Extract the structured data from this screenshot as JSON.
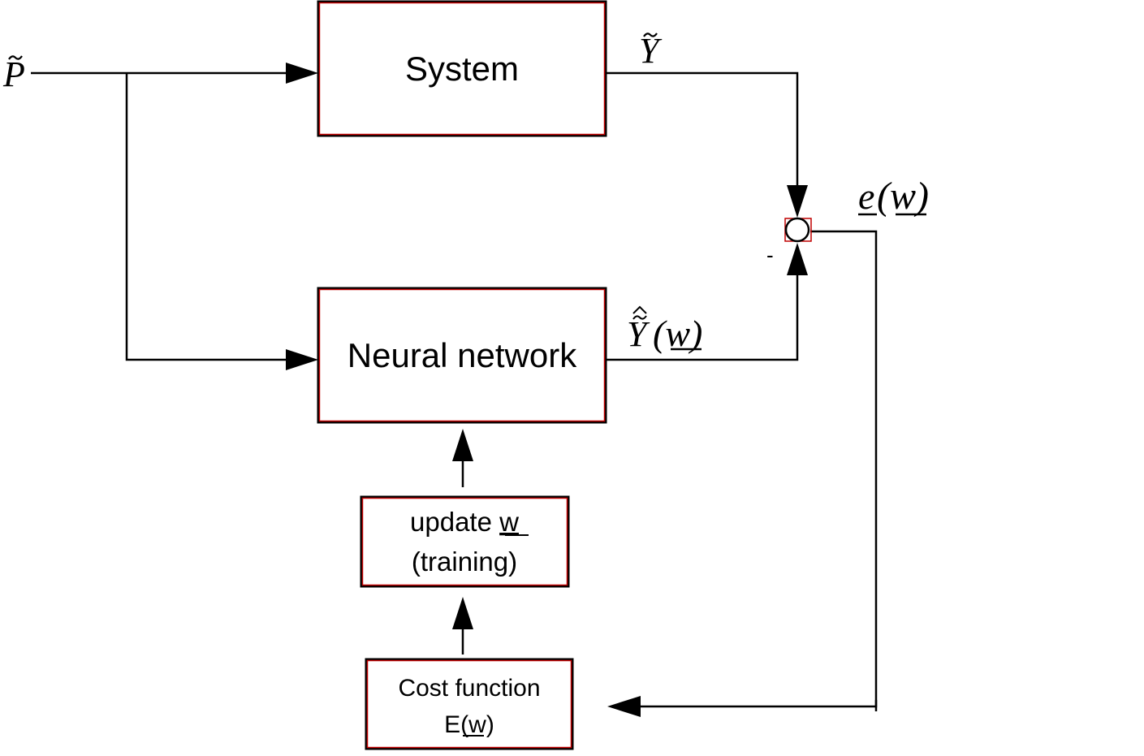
{
  "diagram": {
    "input_label": "P",
    "system_label": "System",
    "system_output_label": "Y",
    "nn_label": "Neural network",
    "nn_output_label": "Y",
    "nn_output_arg": "(w)",
    "error_label": "e",
    "error_arg": "(w)",
    "minus_sign": "-",
    "update_line1_prefix": "update ",
    "update_line1_var": "w",
    "update_line2": "(training)",
    "cost_line1": "Cost function",
    "cost_line2_prefix": "E(",
    "cost_line2_var": "w",
    "cost_line2_suffix": ")"
  },
  "colors": {
    "box_border": "#000000",
    "box_accent": "#c00000",
    "line": "#000000"
  }
}
